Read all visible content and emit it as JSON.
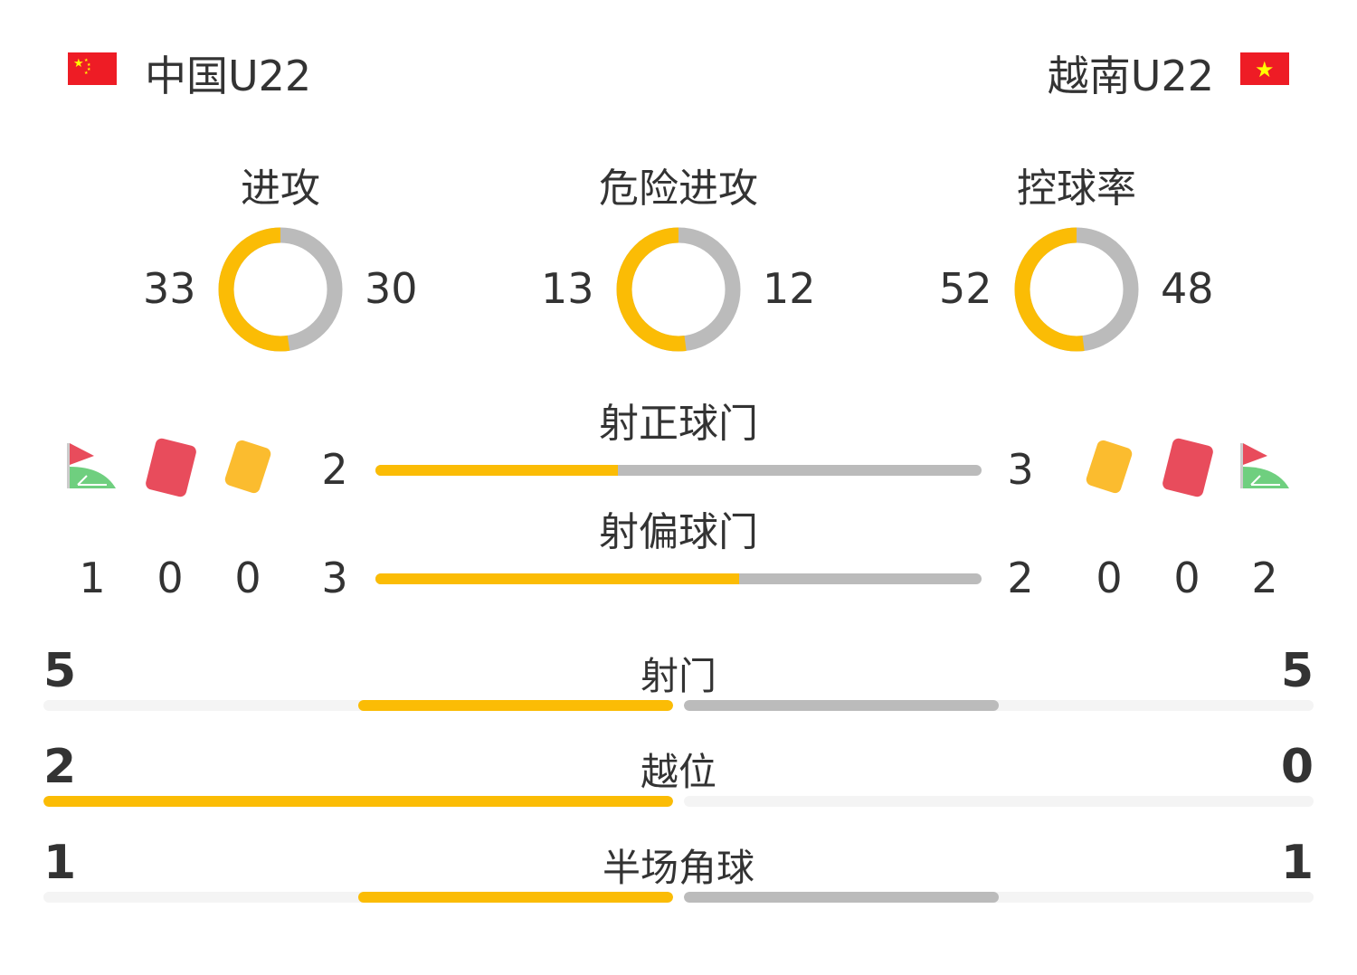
{
  "home": {
    "name": "中国U22",
    "flag": "china-flag"
  },
  "away": {
    "name": "越南U22",
    "flag": "vietnam-flag"
  },
  "colors": {
    "home": "#fbbc05",
    "away": "#bbbbbb"
  },
  "donuts": [
    {
      "title": "进攻",
      "home": "33",
      "away": "30"
    },
    {
      "title": "危险进攻",
      "home": "13",
      "away": "12"
    },
    {
      "title": "控球率",
      "home": "52",
      "away": "48"
    }
  ],
  "lines": [
    {
      "title": "射正球门",
      "home": "2",
      "away": "3"
    },
    {
      "title": "射偏球门",
      "home": "3",
      "away": "2"
    }
  ],
  "events": {
    "icons": [
      "corner-flag-icon",
      "red-card-icon",
      "yellow-card-icon"
    ],
    "home": {
      "corners": "1",
      "red": "0",
      "yellow": "0"
    },
    "away": {
      "corners": "2",
      "red": "0",
      "yellow": "0"
    }
  },
  "bars": [
    {
      "title": "射门",
      "home": "5",
      "away": "5"
    },
    {
      "title": "越位",
      "home": "2",
      "away": "0"
    },
    {
      "title": "半场角球",
      "home": "1",
      "away": "1"
    }
  ]
}
